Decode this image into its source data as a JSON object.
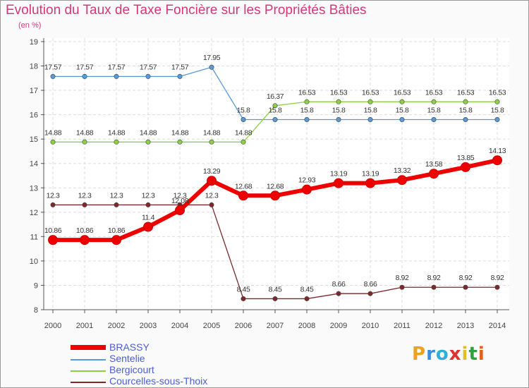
{
  "header": {
    "title": "Evolution du Taux de Taxe Foncière sur les Propriétés Bâties",
    "unit": "(en %)"
  },
  "brand": {
    "text": "Proxiti",
    "letters": [
      "P",
      "r",
      "o",
      "x",
      "i",
      "t",
      "i"
    ],
    "colors": [
      "#f0a020",
      "#3a8ee0",
      "#2bb0d8",
      "#e03030",
      "#e0c020",
      "#30a040",
      "#e06020"
    ]
  },
  "chart_data": {
    "type": "line",
    "title": "Evolution du Taux de Taxe Foncière sur les Propriétés Bâties",
    "ylabel": "(en %)",
    "xlabel": "",
    "ylim": [
      8,
      19
    ],
    "yticks": [
      8,
      9,
      10,
      11,
      12,
      13,
      14,
      15,
      16,
      17,
      18,
      19
    ],
    "grid": true,
    "legend_position": "bottom-left",
    "x": [
      "2000",
      "2001",
      "2002",
      "2003",
      "2004",
      "2005",
      "2006",
      "2007",
      "2008",
      "2009",
      "2010",
      "2011",
      "2012",
      "2013",
      "2014"
    ],
    "series": [
      {
        "name": "BRASSY",
        "color": "#ee0000",
        "bold": true,
        "values": [
          10.86,
          10.86,
          10.86,
          11.4,
          12.08,
          13.29,
          12.68,
          12.68,
          12.93,
          13.19,
          13.19,
          13.32,
          13.58,
          13.85,
          14.13
        ],
        "labels": [
          "10.86",
          "10.86",
          "10.86",
          "11.4",
          "12.08",
          "13.29",
          "12.68",
          "12.68",
          "12.93",
          "13.19",
          "13.19",
          "13.32",
          "13.58",
          "13.85",
          "14.13"
        ]
      },
      {
        "name": "Sentelie",
        "color": "#5a9ad4",
        "bold": false,
        "values": [
          17.57,
          17.57,
          17.57,
          17.57,
          17.57,
          17.95,
          15.8,
          15.8,
          15.8,
          15.8,
          15.8,
          15.8,
          15.8,
          15.8,
          15.8
        ],
        "labels": [
          "17.57",
          "17.57",
          "17.57",
          "17.57",
          "17.57",
          "17.95",
          "15.8",
          "15.8",
          "15.8",
          "15.8",
          "15.8",
          "15.8",
          "15.8",
          "15.8",
          "15.8"
        ]
      },
      {
        "name": "Bergicourt",
        "color": "#8ed044",
        "bold": false,
        "values": [
          14.88,
          14.88,
          14.88,
          14.88,
          14.88,
          14.88,
          14.88,
          16.37,
          16.53,
          16.53,
          16.53,
          16.53,
          16.53,
          16.53,
          16.53
        ],
        "labels": [
          "14.88",
          "14.88",
          "14.88",
          "14.88",
          "14.88",
          "14.88",
          "14.88",
          "16.37",
          "16.53",
          "16.53",
          "16.53",
          "16.53",
          "16.53",
          "16.53",
          "16.53"
        ]
      },
      {
        "name": "Courcelles-sous-Thoix",
        "color": "#7a2a2a",
        "bold": false,
        "values": [
          12.3,
          12.3,
          12.3,
          12.3,
          12.3,
          12.3,
          8.45,
          8.45,
          8.45,
          8.66,
          8.66,
          8.92,
          8.92,
          8.92,
          8.92
        ],
        "labels": [
          "12.3",
          "12.3",
          "12.3",
          "12.3",
          "12.3",
          "12.3",
          "8.45",
          "8.45",
          "8.45",
          "8.66",
          "8.66",
          "8.92",
          "8.92",
          "8.92",
          "8.92"
        ]
      }
    ]
  }
}
